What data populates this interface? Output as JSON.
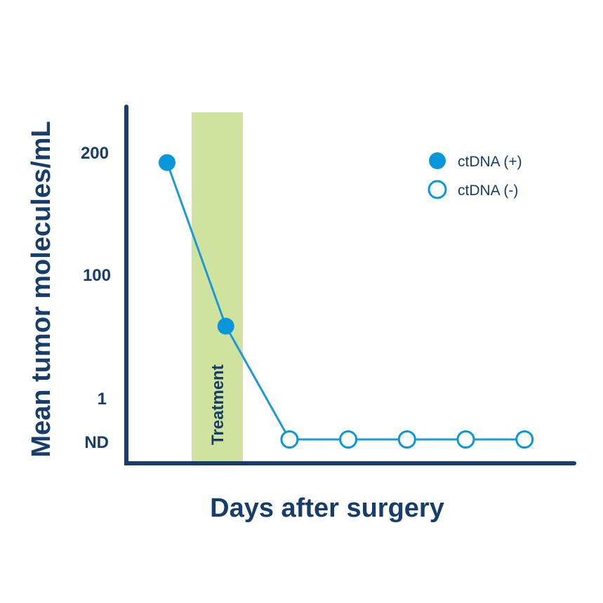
{
  "chart_data": {
    "type": "line",
    "xlabel": "Days after surgery",
    "ylabel": "Mean tumor molecules/mL",
    "y_ticks": [
      "200",
      "100",
      "1",
      "ND"
    ],
    "x": [
      1,
      2,
      3,
      4,
      5,
      6,
      7
    ],
    "series": [
      {
        "values": [
          190,
          58,
          "ND",
          "ND",
          "ND",
          "ND",
          "ND"
        ],
        "status": [
          "ctDNA (+)",
          "ctDNA (+)",
          "ctDNA (-)",
          "ctDNA (-)",
          "ctDNA (-)",
          "ctDNA (-)",
          "ctDNA (-)"
        ]
      }
    ],
    "legend": {
      "position": "top-right",
      "entries": [
        "ctDNA (+)",
        "ctDNA (-)"
      ]
    },
    "annotations": [
      {
        "text": "Treatment",
        "type": "shaded-band",
        "between_x": [
          1,
          2
        ]
      }
    ],
    "grid": false
  },
  "colors": {
    "axis": "#173d6b",
    "line": "#1b9ad6",
    "marker": "#0a96db",
    "treatment_band": "#cfe39f"
  }
}
